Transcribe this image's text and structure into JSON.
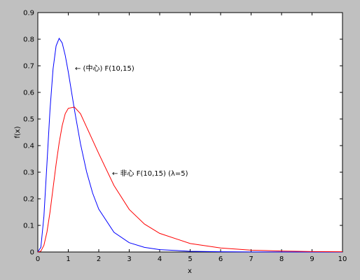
{
  "chart_data": {
    "type": "line",
    "xlabel": "x",
    "ylabel": "f(x)",
    "annotations": [
      "← (中心) F(10,15)",
      "← 非心 F(10,15) (λ=5)"
    ],
    "x": [
      0,
      0.1,
      0.2,
      0.3,
      0.4,
      0.5,
      0.6,
      0.7,
      0.8,
      0.9,
      1.0,
      1.2,
      1.4,
      1.6,
      1.8,
      2.0,
      2.5,
      3,
      3.5,
      4,
      5,
      6,
      7,
      8,
      9,
      10
    ],
    "series": [
      {
        "color": "#0000ff",
        "values": [
          0,
          0.018,
          0.134,
          0.333,
          0.535,
          0.688,
          0.775,
          0.803,
          0.786,
          0.739,
          0.677,
          0.536,
          0.407,
          0.302,
          0.221,
          0.161,
          0.074,
          0.035,
          0.0175,
          0.009,
          0.0028,
          0.001,
          0.0004,
          0.0002,
          0.0001,
          0
        ]
      },
      {
        "color": "#ff0000",
        "values": [
          0,
          0.003,
          0.025,
          0.075,
          0.15,
          0.24,
          0.33,
          0.41,
          0.475,
          0.52,
          0.54,
          0.545,
          0.52,
          0.47,
          0.42,
          0.37,
          0.25,
          0.16,
          0.105,
          0.07,
          0.032,
          0.015,
          0.007,
          0.0035,
          0.0018,
          0.001
        ]
      }
    ],
    "xlim": [
      0,
      10
    ],
    "xticks": [
      0,
      1,
      2,
      3,
      4,
      5,
      6,
      7,
      8,
      9,
      10
    ],
    "ylim": [
      0,
      0.9
    ],
    "yticks": [
      0,
      0.1,
      0.2,
      0.3,
      0.4,
      0.5,
      0.6,
      0.7,
      0.8,
      0.9
    ]
  }
}
